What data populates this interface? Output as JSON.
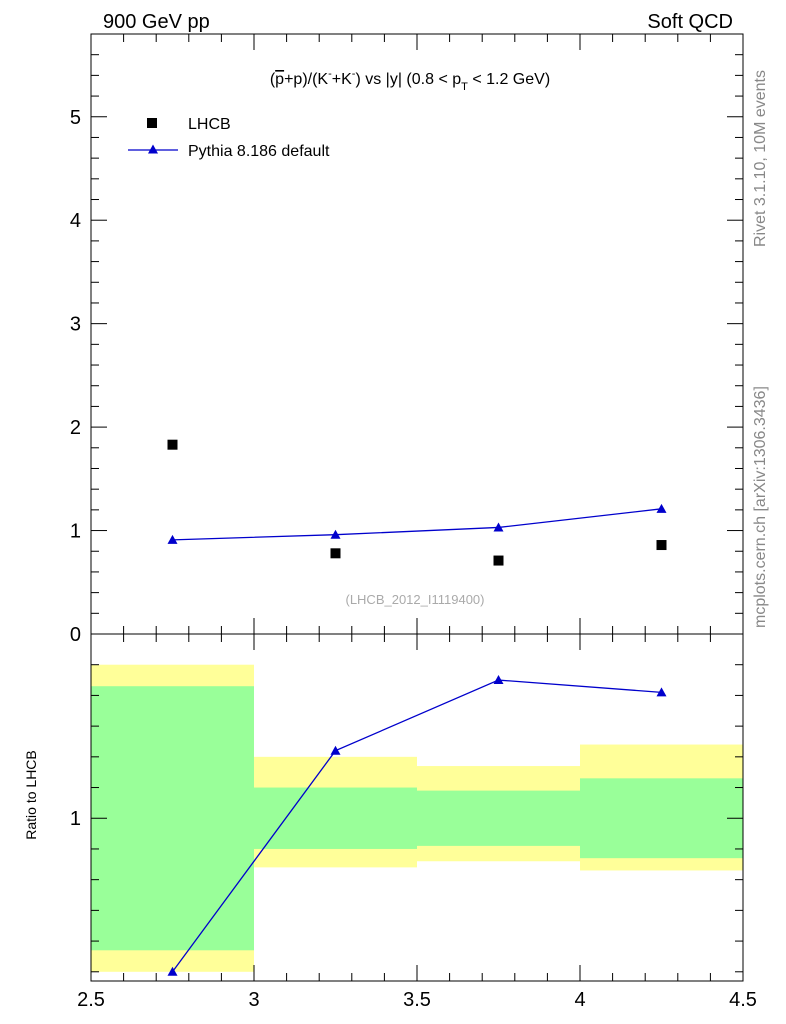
{
  "header": {
    "left": "900 GeV pp",
    "right": "Soft QCD"
  },
  "side": {
    "rivet": "Rivet 3.1.10,  10M events",
    "mcplots": "mcplots.cern.ch [arXiv:1306.3436]"
  },
  "title": {
    "part1": "(",
    "pbar": "p",
    "part2": "+p)/(K",
    "sup1": "-",
    "part3": "+K",
    "sup2": "-",
    "part4": ") vs |y| (0.8 < p",
    "sub": "T",
    "part5": " < 1.2 GeV)"
  },
  "watermark": "(LHCB_2012_I1119400)",
  "ratio_ylabel": "Ratio to LHCB",
  "colors": {
    "mc": "#0000cc",
    "data": "#000000",
    "band_inner": "#99ff99",
    "band_outer": "#ffff99"
  },
  "chart_data": [
    {
      "type": "scatter",
      "title": "(p̄+p)/(K⁻+K⁻) vs |y| (0.8 < pT < 1.2 GeV)",
      "xlim": [
        2.5,
        4.5
      ],
      "ylim": [
        0,
        5.8
      ],
      "yticks": [
        0,
        1,
        2,
        3,
        4,
        5
      ],
      "legend_position": "top-left",
      "series": [
        {
          "name": "LHCB",
          "marker": "square",
          "x": [
            2.75,
            3.25,
            3.75,
            4.25
          ],
          "values": [
            1.83,
            0.78,
            0.71,
            0.86
          ]
        },
        {
          "name": "Pythia 8.186 default",
          "marker": "triangle",
          "line": true,
          "x": [
            2.75,
            3.25,
            3.75,
            4.25
          ],
          "values": [
            0.91,
            0.96,
            1.03,
            1.21
          ]
        }
      ]
    },
    {
      "type": "line",
      "ylabel": "Ratio to LHCB",
      "xlim": [
        2.5,
        4.5
      ],
      "ylim": [
        0.47,
        1.6
      ],
      "xticks": [
        2.5,
        3,
        3.5,
        4,
        4.5
      ],
      "yticks": [
        1
      ],
      "bins": [
        {
          "lo": 2.5,
          "hi": 3.0,
          "inner": [
            0.57,
            1.43
          ],
          "outer": [
            0.5,
            1.5
          ]
        },
        {
          "lo": 3.0,
          "hi": 3.5,
          "inner": [
            0.9,
            1.1
          ],
          "outer": [
            0.84,
            1.2
          ]
        },
        {
          "lo": 3.5,
          "hi": 4.0,
          "inner": [
            0.91,
            1.09
          ],
          "outer": [
            0.86,
            1.17
          ]
        },
        {
          "lo": 4.0,
          "hi": 4.5,
          "inner": [
            0.87,
            1.13
          ],
          "outer": [
            0.83,
            1.24
          ]
        }
      ],
      "series": [
        {
          "name": "Pythia 8.186 default",
          "x": [
            2.75,
            3.25,
            3.75,
            4.25
          ],
          "values": [
            0.5,
            1.22,
            1.45,
            1.41
          ]
        }
      ]
    }
  ]
}
